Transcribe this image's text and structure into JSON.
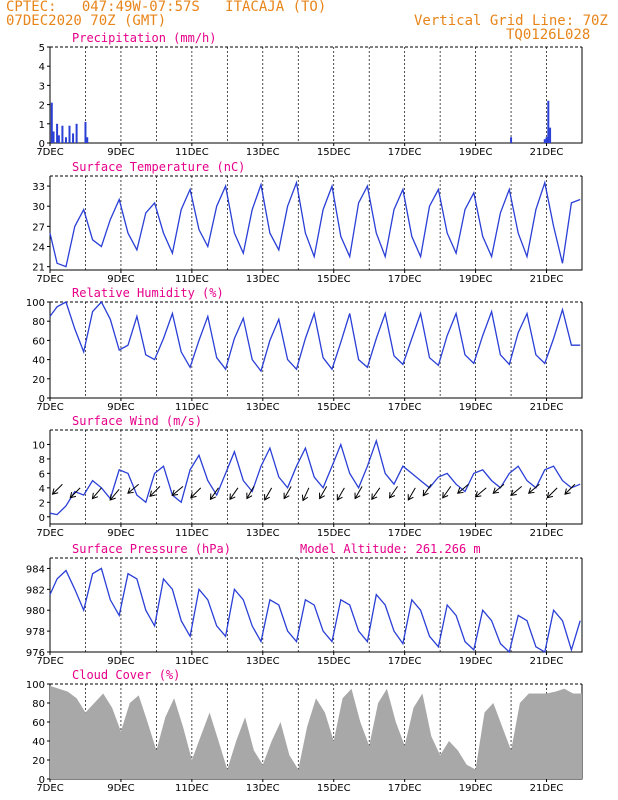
{
  "header": {
    "line1_left": "CPTEC:   047:49W-07:57S   ITACAJA (TO)",
    "line2_left": "07DEC2020 70Z (GMT)",
    "line1_right": "Vertical Grid Line: 70Z",
    "line2_right": "TQ0126L028"
  },
  "colors": {
    "header": "#e8851a",
    "title": "#e6008a",
    "line": "#2a3fd6",
    "cloud": "#a8a8a8"
  },
  "chart_data": [
    {
      "type": "bar",
      "title": "Precipitation (mm/h)",
      "x_ticks": [
        "7DEC",
        "9DEC",
        "11DEC",
        "13DEC",
        "15DEC",
        "17DEC",
        "19DEC",
        "21DEC"
      ],
      "xlim_days": [
        7,
        22
      ],
      "ylim": [
        0,
        5
      ],
      "y_ticks": [
        0,
        1,
        2,
        3,
        4,
        5
      ],
      "x": [
        7.05,
        7.1,
        7.2,
        7.25,
        7.35,
        7.45,
        7.55,
        7.65,
        7.75,
        8.0,
        8.05,
        20.0,
        20.95,
        21.0,
        21.05,
        21.1
      ],
      "values": [
        2.1,
        0.6,
        1.0,
        0.4,
        0.9,
        0.3,
        0.9,
        0.5,
        1.0,
        1.1,
        0.3,
        0.3,
        0.2,
        0.3,
        2.2,
        0.8
      ]
    },
    {
      "type": "line",
      "title": "Surface Temperature (nC)",
      "x_ticks": [
        "7DEC",
        "9DEC",
        "11DEC",
        "13DEC",
        "15DEC",
        "17DEC",
        "19DEC",
        "21DEC"
      ],
      "xlim_days": [
        7,
        22
      ],
      "ylim": [
        20.5,
        34.5
      ],
      "y_ticks": [
        21,
        24,
        27,
        30,
        33
      ],
      "x": [
        7.0,
        7.2,
        7.45,
        7.7,
        7.95,
        8.2,
        8.45,
        8.7,
        8.95,
        9.2,
        9.45,
        9.7,
        9.95,
        10.2,
        10.45,
        10.7,
        10.95,
        11.2,
        11.45,
        11.7,
        11.95,
        12.2,
        12.45,
        12.7,
        12.95,
        13.2,
        13.45,
        13.7,
        13.95,
        14.2,
        14.45,
        14.7,
        14.95,
        15.2,
        15.45,
        15.7,
        15.95,
        16.2,
        16.45,
        16.7,
        16.95,
        17.2,
        17.45,
        17.7,
        17.95,
        18.2,
        18.45,
        18.7,
        18.95,
        19.2,
        19.45,
        19.7,
        19.95,
        20.2,
        20.45,
        20.7,
        20.95,
        21.2,
        21.45,
        21.7,
        21.95
      ],
      "values": [
        26,
        21.5,
        21,
        27,
        29.5,
        25,
        24,
        28,
        31,
        26,
        23.5,
        29,
        30.5,
        26,
        23,
        29.5,
        32.5,
        26.5,
        24,
        30,
        33,
        26,
        23,
        29.5,
        33.2,
        26,
        23.5,
        30,
        33.5,
        26,
        22.5,
        29.5,
        33,
        25.5,
        22.5,
        30.5,
        33,
        26,
        22.5,
        29.5,
        32.5,
        25.5,
        22.5,
        30,
        32.5,
        26,
        23,
        29.5,
        32,
        25.5,
        22.5,
        29,
        32.5,
        26,
        22.5,
        29.5,
        33.5,
        27,
        21.5,
        30.5,
        31
      ]
    },
    {
      "type": "line",
      "title": "Relative Humidity (%)",
      "x_ticks": [
        "7DEC",
        "9DEC",
        "11DEC",
        "13DEC",
        "15DEC",
        "17DEC",
        "19DEC",
        "21DEC"
      ],
      "xlim_days": [
        7,
        22
      ],
      "ylim": [
        0,
        100
      ],
      "y_ticks": [
        0,
        20,
        40,
        60,
        80,
        100
      ],
      "x": [
        7.0,
        7.2,
        7.45,
        7.7,
        7.95,
        8.2,
        8.45,
        8.7,
        8.95,
        9.2,
        9.45,
        9.7,
        9.95,
        10.2,
        10.45,
        10.7,
        10.95,
        11.2,
        11.45,
        11.7,
        11.95,
        12.2,
        12.45,
        12.7,
        12.95,
        13.2,
        13.45,
        13.7,
        13.95,
        14.2,
        14.45,
        14.7,
        14.95,
        15.2,
        15.45,
        15.7,
        15.95,
        16.2,
        16.45,
        16.7,
        16.95,
        17.2,
        17.45,
        17.7,
        17.95,
        18.2,
        18.45,
        18.7,
        18.95,
        19.2,
        19.45,
        19.7,
        19.95,
        20.2,
        20.45,
        20.7,
        20.95,
        21.2,
        21.45,
        21.7,
        21.95
      ],
      "values": [
        85,
        95,
        100,
        72,
        48,
        90,
        100,
        82,
        50,
        55,
        85,
        45,
        40,
        62,
        88,
        48,
        32,
        60,
        85,
        42,
        30,
        62,
        83,
        40,
        28,
        60,
        82,
        40,
        30,
        62,
        88,
        42,
        30,
        58,
        88,
        40,
        32,
        62,
        88,
        44,
        35,
        62,
        88,
        42,
        34,
        65,
        88,
        45,
        36,
        65,
        90,
        45,
        35,
        68,
        88,
        45,
        36,
        62,
        92,
        55,
        55
      ]
    },
    {
      "type": "line",
      "title": "Surface Wind (m/s)",
      "x_ticks": [
        "7DEC",
        "9DEC",
        "11DEC",
        "13DEC",
        "15DEC",
        "17DEC",
        "19DEC",
        "21DEC"
      ],
      "xlim_days": [
        7,
        22
      ],
      "ylim": [
        -1,
        12
      ],
      "y_ticks": [
        0,
        2,
        4,
        6,
        8,
        10
      ],
      "x": [
        7.0,
        7.2,
        7.45,
        7.7,
        7.95,
        8.2,
        8.45,
        8.7,
        8.95,
        9.2,
        9.45,
        9.7,
        9.95,
        10.2,
        10.45,
        10.7,
        10.95,
        11.2,
        11.45,
        11.7,
        11.95,
        12.2,
        12.45,
        12.7,
        12.95,
        13.2,
        13.45,
        13.7,
        13.95,
        14.2,
        14.45,
        14.7,
        14.95,
        15.2,
        15.45,
        15.7,
        15.95,
        16.2,
        16.45,
        16.7,
        16.95,
        17.2,
        17.45,
        17.7,
        17.95,
        18.2,
        18.45,
        18.7,
        18.95,
        19.2,
        19.45,
        19.7,
        19.95,
        20.2,
        20.45,
        20.7,
        20.95,
        21.2,
        21.45,
        21.7,
        21.95
      ],
      "values": [
        0.5,
        0.3,
        1.5,
        3.5,
        3,
        5,
        4,
        2.5,
        6.5,
        6,
        3,
        2,
        6,
        7,
        3,
        2,
        6.5,
        8.5,
        5,
        3,
        6,
        9,
        5,
        3.5,
        7,
        9.5,
        5.5,
        4,
        7,
        9.5,
        5.5,
        4,
        7,
        10,
        6,
        4,
        7,
        10.5,
        6,
        4.5,
        7,
        6,
        5,
        4,
        5.5,
        6,
        4.5,
        3.5,
        6,
        6.5,
        5,
        4,
        6,
        7,
        5,
        4,
        6.5,
        7,
        5,
        4,
        4.5
      ],
      "arrows_x": [
        7.35,
        7.85,
        8.45,
        8.95,
        9.5,
        10.1,
        10.75,
        11.25,
        11.75,
        12.3,
        12.75,
        13.25,
        13.8,
        14.3,
        14.8,
        15.3,
        15.8,
        16.3,
        16.8,
        17.3,
        17.75,
        18.3,
        18.8,
        19.3,
        19.8,
        20.3,
        20.8,
        21.3,
        21.8
      ],
      "arrows_angle_deg": [
        225,
        225,
        220,
        220,
        230,
        225,
        230,
        225,
        215,
        215,
        210,
        210,
        210,
        205,
        210,
        210,
        210,
        215,
        215,
        210,
        215,
        215,
        230,
        230,
        230,
        230,
        230,
        225,
        225
      ],
      "arrows_y": [
        4.5,
        4,
        4,
        3.8,
        4.5,
        4.2,
        4.2,
        4,
        4,
        4,
        4.2,
        4,
        4.2,
        4,
        4.2,
        4,
        4.2,
        4,
        4.2,
        4,
        4.5,
        4.2,
        4.5,
        4,
        4.5,
        4.2,
        4.5,
        4,
        4.5
      ]
    },
    {
      "type": "line",
      "title": "Surface Pressure (hPa)",
      "subtitle": "Model Altitude: 261.266 m",
      "x_ticks": [
        "7DEC",
        "9DEC",
        "11DEC",
        "13DEC",
        "15DEC",
        "17DEC",
        "19DEC",
        "21DEC"
      ],
      "xlim_days": [
        7,
        22
      ],
      "ylim": [
        976,
        985
      ],
      "y_ticks": [
        976,
        978,
        980,
        982,
        984
      ],
      "x": [
        7.0,
        7.2,
        7.45,
        7.7,
        7.95,
        8.2,
        8.45,
        8.7,
        8.95,
        9.2,
        9.45,
        9.7,
        9.95,
        10.2,
        10.45,
        10.7,
        10.95,
        11.2,
        11.45,
        11.7,
        11.95,
        12.2,
        12.45,
        12.7,
        12.95,
        13.2,
        13.45,
        13.7,
        13.95,
        14.2,
        14.45,
        14.7,
        14.95,
        15.2,
        15.45,
        15.7,
        15.95,
        16.2,
        16.45,
        16.7,
        16.95,
        17.2,
        17.45,
        17.7,
        17.95,
        18.2,
        18.45,
        18.7,
        18.95,
        19.2,
        19.45,
        19.7,
        19.95,
        20.2,
        20.45,
        20.7,
        20.95,
        21.2,
        21.45,
        21.7,
        21.95
      ],
      "values": [
        981.5,
        983,
        983.8,
        982,
        980,
        983.5,
        984,
        981,
        979.5,
        983.5,
        983,
        980,
        978.5,
        983,
        982,
        979,
        977.5,
        982,
        981,
        978.5,
        977.5,
        982,
        981,
        978.5,
        977,
        981,
        980.5,
        978,
        977,
        981,
        980.5,
        978,
        977,
        981,
        980.5,
        978,
        977,
        981.5,
        980.5,
        978,
        976.8,
        981,
        980,
        977.5,
        976.5,
        980.5,
        979.5,
        977,
        976.2,
        980,
        979,
        976.8,
        976,
        979.5,
        979,
        976.5,
        976,
        980,
        979,
        976.2,
        979
      ]
    },
    {
      "type": "area",
      "title": "Cloud Cover (%)",
      "x_ticks": [
        "7DEC",
        "9DEC",
        "11DEC",
        "13DEC",
        "15DEC",
        "17DEC",
        "19DEC",
        "21DEC"
      ],
      "xlim_days": [
        7,
        22
      ],
      "ylim": [
        0,
        100
      ],
      "y_ticks": [
        0,
        20,
        40,
        60,
        80,
        100
      ],
      "x": [
        7.0,
        7.25,
        7.5,
        7.75,
        8.0,
        8.25,
        8.5,
        8.75,
        9.0,
        9.25,
        9.5,
        9.75,
        10.0,
        10.25,
        10.5,
        10.75,
        11.0,
        11.25,
        11.5,
        11.75,
        12.0,
        12.25,
        12.5,
        12.75,
        13.0,
        13.25,
        13.5,
        13.75,
        14.0,
        14.25,
        14.5,
        14.75,
        15.0,
        15.25,
        15.5,
        15.75,
        16.0,
        16.25,
        16.5,
        16.75,
        17.0,
        17.25,
        17.5,
        17.75,
        18.0,
        18.25,
        18.5,
        18.75,
        19.0,
        19.25,
        19.5,
        19.75,
        20.0,
        20.25,
        20.5,
        20.75,
        21.0,
        21.25,
        21.5,
        21.75,
        22.0
      ],
      "values": [
        98,
        95,
        92,
        85,
        70,
        80,
        90,
        75,
        50,
        80,
        88,
        60,
        30,
        65,
        85,
        55,
        20,
        45,
        70,
        40,
        10,
        40,
        65,
        30,
        15,
        40,
        60,
        25,
        10,
        55,
        85,
        70,
        40,
        85,
        95,
        60,
        35,
        80,
        95,
        60,
        35,
        75,
        90,
        45,
        25,
        40,
        30,
        15,
        10,
        70,
        80,
        55,
        30,
        80,
        90,
        90,
        90,
        92,
        95,
        90,
        90
      ]
    }
  ]
}
